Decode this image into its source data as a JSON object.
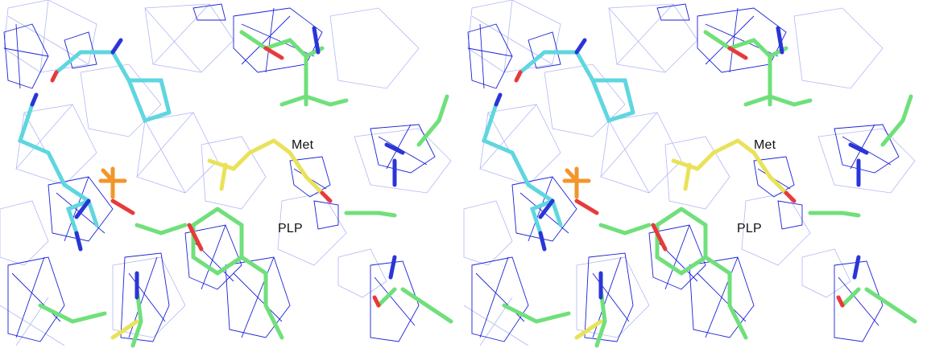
{
  "figure": {
    "labels": {
      "met": "Met",
      "plp": "PLP"
    },
    "colors": {
      "mesh_dark": "#1a22d6",
      "mesh_light": "#9aa3f2",
      "carbon_green": "#6fe07a",
      "carbon_cyan": "#5fd6e0",
      "carbon_yellow": "#e9e25a",
      "oxygen": "#e83a3a",
      "nitrogen": "#2a35d8",
      "phosphorus": "#f2962a"
    }
  }
}
